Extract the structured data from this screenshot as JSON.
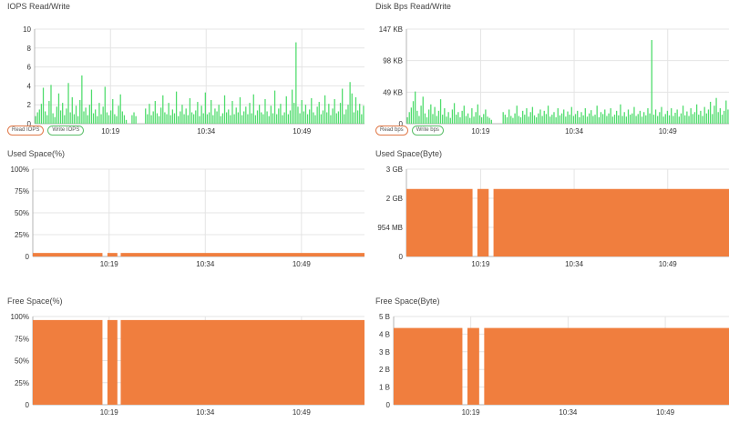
{
  "colors": {
    "read": "#e07a4a",
    "write": "#4fdc6c",
    "fill": "#f07e3e",
    "grid": "#e4e4e4",
    "axis": "#b5b5b5"
  },
  "panels": [
    {
      "id": "iops",
      "title": "IOPS Read/Write",
      "legend": [
        {
          "label": "Read IOPS",
          "kind": "read"
        },
        {
          "label": "Write IOPS",
          "kind": "write"
        }
      ],
      "chart_data": {
        "type": "bar",
        "x_ticks": [
          "10:19",
          "10:34",
          "10:49"
        ],
        "y_ticks": [
          "0",
          "2",
          "4",
          "6",
          "8",
          "10"
        ],
        "ylim": [
          0,
          10
        ],
        "series": [
          {
            "name": "Write IOPS",
            "color": "#4fdc6c",
            "values": [
              0.8,
              1.2,
              1.5,
              2.1,
              3.8,
              1.3,
              0.9,
              2.4,
              4.1,
              1.1,
              0.7,
              1.8,
              3.2,
              1.4,
              2.2,
              0.9,
              1.6,
              4.3,
              1.2,
              2.8,
              1.0,
              1.9,
              0.8,
              2.5,
              5.1,
              1.3,
              1.7,
              0.9,
              2.0,
              3.6,
              1.1,
              1.5,
              0.8,
              2.2,
              1.0,
              1.8,
              3.9,
              1.2,
              0.9,
              1.4,
              2.6,
              1.0,
              0.8,
              1.9,
              3.1,
              1.3,
              0.9,
              0.4,
              0,
              0,
              0.9,
              1.2,
              0.8,
              0,
              0,
              0,
              0,
              1.6,
              1.0,
              2.1,
              0.9,
              1.3,
              2.4,
              1.1,
              0.8,
              1.7,
              3.0,
              1.2,
              1.0,
              2.2,
              0.9,
              1.5,
              1.1,
              3.4,
              0.8,
              1.3,
              2.0,
              1.0,
              1.6,
              0.9,
              2.7,
              1.2,
              1.0,
              1.4,
              2.3,
              0.8,
              1.9,
              1.1,
              3.3,
              1.0,
              1.2,
              2.5,
              0.9,
              1.6,
              1.3,
              2.0,
              0.8,
              1.1,
              3.0,
              1.2,
              1.5,
              0.9,
              2.4,
              1.0,
              1.7,
              1.2,
              2.8,
              0.9,
              1.3,
              1.8,
              1.0,
              2.2,
              1.1,
              3.1,
              0.9,
              1.4,
              2.0,
              1.2,
              1.0,
              2.6,
              1.3,
              0.8,
              1.9,
              1.1,
              3.5,
              1.0,
              1.6,
              2.1,
              0.9,
              1.2,
              2.9,
              1.0,
              1.4,
              3.6,
              2.2,
              8.6,
              1.8,
              1.1,
              2.5,
              1.3,
              2.0,
              1.0,
              1.5,
              2.7,
              1.2,
              0.9,
              1.8,
              2.3,
              1.0,
              1.4,
              3.0,
              1.2,
              2.1,
              0.9,
              1.6,
              2.6,
              1.1,
              1.3,
              2.2,
              3.7,
              1.0,
              1.5,
              2.0,
              4.4,
              3.2,
              1.2,
              2.8,
              1.4,
              2.1,
              1.0,
              1.9
            ]
          }
        ]
      }
    },
    {
      "id": "disk-bps",
      "title": "Disk Bps Read/Write",
      "legend": [
        {
          "label": "Read bps",
          "kind": "read"
        },
        {
          "label": "Write bps",
          "kind": "write"
        }
      ],
      "chart_data": {
        "type": "bar",
        "x_ticks": [
          "10:19",
          "10:34",
          "10:49"
        ],
        "y_ticks": [
          "0",
          "49 KB",
          "98 KB",
          "147 KB"
        ],
        "ylim": [
          0,
          147
        ],
        "series": [
          {
            "name": "Write bps",
            "color": "#4fdc6c",
            "values": [
              10,
              18,
              25,
              35,
              50,
              20,
              12,
              28,
              42,
              16,
              10,
              22,
              30,
              15,
              26,
              12,
              20,
              38,
              14,
              24,
              11,
              18,
              9,
              22,
              32,
              14,
              18,
              10,
              20,
              28,
              12,
              16,
              9,
              24,
              11,
              18,
              30,
              13,
              10,
              15,
              22,
              11,
              9,
              6,
              0,
              0,
              0,
              0,
              0,
              18,
              14,
              10,
              22,
              12,
              9,
              16,
              28,
              12,
              10,
              20,
              14,
              24,
              11,
              18,
              26,
              13,
              10,
              16,
              22,
              12,
              20,
              15,
              28,
              11,
              14,
              18,
              10,
              24,
              13,
              16,
              22,
              11,
              19,
              14,
              26,
              12,
              15,
              20,
              10,
              18,
              13,
              24,
              11,
              16,
              21,
              12,
              14,
              28,
              10,
              18,
              15,
              22,
              12,
              16,
              24,
              11,
              14,
              20,
              13,
              30,
              12,
              18,
              11,
              22,
              14,
              16,
              26,
              12,
              15,
              20,
              11,
              18,
              13,
              24,
              16,
              130,
              14,
              22,
              12,
              18,
              26,
              11,
              15,
              20,
              13,
              24,
              12,
              17,
              22,
              11,
              16,
              28,
              13,
              19,
              12,
              24,
              15,
              18,
              30,
              14,
              20,
              12,
              26,
              16,
              22,
              34,
              15,
              28,
              40,
              18,
              24,
              14,
              20,
              36,
              22
            ]
          }
        ]
      }
    },
    {
      "id": "used-pct",
      "title": "Used Space(%)",
      "legend": [],
      "chart_data": {
        "type": "area",
        "x_ticks": [
          "10:19",
          "10:34",
          "10:49"
        ],
        "y_ticks": [
          "0",
          "25%",
          "50%",
          "75%",
          "100%"
        ],
        "ylim": [
          0,
          100
        ],
        "series": [
          {
            "name": "",
            "color": "#f07e3e",
            "value": 4,
            "gaps": [
              [
                0.21,
                0.225
              ],
              [
                0.255,
                0.265
              ]
            ]
          }
        ]
      }
    },
    {
      "id": "used-byte",
      "title": "Used Space(Byte)",
      "legend": [],
      "chart_data": {
        "type": "area",
        "x_ticks": [
          "10:19",
          "10:34",
          "10:49"
        ],
        "y_ticks": [
          "0",
          "954 MB",
          "2 GB",
          "3 GB"
        ],
        "ylim": [
          0,
          3
        ],
        "series": [
          {
            "name": "",
            "color": "#f07e3e",
            "value": 2.32,
            "gaps": [
              [
                0.205,
                0.22
              ],
              [
                0.255,
                0.27
              ]
            ]
          }
        ]
      }
    },
    {
      "id": "free-pct",
      "title": "Free Space(%)",
      "legend": [],
      "chart_data": {
        "type": "area",
        "x_ticks": [
          "10:19",
          "10:34",
          "10:49"
        ],
        "y_ticks": [
          "0",
          "25%",
          "50%",
          "75%",
          "100%"
        ],
        "ylim": [
          0,
          100
        ],
        "series": [
          {
            "name": "",
            "color": "#f07e3e",
            "value": 96,
            "gaps": [
              [
                0.21,
                0.225
              ],
              [
                0.255,
                0.265
              ]
            ]
          }
        ]
      }
    },
    {
      "id": "free-byte",
      "title": "Free Space(Byte)",
      "legend": [],
      "chart_data": {
        "type": "area",
        "x_ticks": [
          "10:19",
          "10:34",
          "10:49"
        ],
        "y_ticks": [
          "0",
          "1 B",
          "2 B",
          "3 B",
          "4 B",
          "5 B"
        ],
        "ylim": [
          0,
          5
        ],
        "series": [
          {
            "name": "",
            "color": "#f07e3e",
            "value": 4.35,
            "gaps": [
              [
                0.205,
                0.22
              ],
              [
                0.255,
                0.27
              ]
            ]
          }
        ]
      }
    }
  ]
}
